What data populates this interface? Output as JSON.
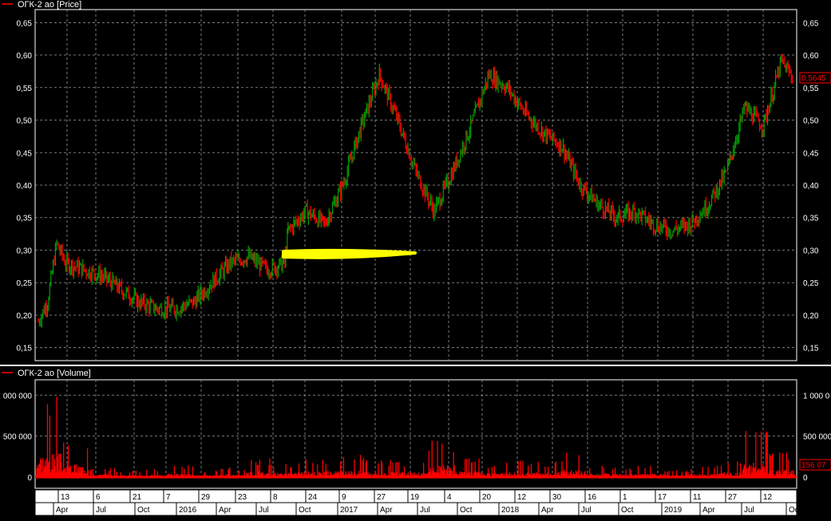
{
  "price_panel": {
    "legend": "ОГК-2 ао [Price]",
    "last_value": "0,5645",
    "y_ticks": [
      "0,65",
      "0,60",
      "0,55",
      "0,50",
      "0,45",
      "0,40",
      "0,35",
      "0,30",
      "0,25",
      "0,20",
      "0,15"
    ]
  },
  "volume_panel": {
    "legend": "ОГК-2 ао [Volume]",
    "last_value": "156 07",
    "y_ticks_left": [
      "000 000",
      "500 000",
      "0"
    ],
    "y_ticks_right": [
      "1 000 0",
      "500 000",
      "0"
    ]
  },
  "time_axis": {
    "row1": [
      "13",
      "6",
      "21",
      "7",
      "29",
      "23",
      "8",
      "24",
      "9",
      "27",
      "19",
      "4",
      "20",
      "12",
      "30",
      "16",
      "1",
      "17",
      "11",
      "27",
      "12"
    ],
    "row2": [
      "Apr",
      "Jul",
      "Oct",
      "2016",
      "Apr",
      "Jul",
      "Oct",
      "2017",
      "Apr",
      "Jul",
      "Oct",
      "2018",
      "Apr",
      "Jul",
      "Oct",
      "2019",
      "Apr",
      "Jul",
      "Oct"
    ]
  },
  "colors": {
    "up": "#00a000",
    "down": "#ff0000",
    "grid": "#aaaaaa",
    "highlight": "#ffff00"
  },
  "chart_data": [
    {
      "type": "line",
      "series": [
        {
          "name": "ОГК-2 ао [Price]",
          "x": [
            "2015-01-05",
            "2015-01-26",
            "2015-02-16",
            "2015-03-09",
            "2015-04-20",
            "2015-06-01",
            "2015-07-13",
            "2015-08-24",
            "2015-10-05",
            "2015-11-16",
            "2015-12-28",
            "2016-02-08",
            "2016-03-21",
            "2016-05-02",
            "2016-06-13",
            "2016-07-25",
            "2016-08-01",
            "2016-09-12",
            "2016-10-24",
            "2016-12-05",
            "2017-01-16",
            "2017-02-27",
            "2017-04-10",
            "2017-05-22",
            "2017-07-03",
            "2017-08-14",
            "2017-09-25",
            "2017-11-06",
            "2017-12-18",
            "2018-01-29",
            "2018-03-12",
            "2018-04-23",
            "2018-06-04",
            "2018-07-16",
            "2018-08-27",
            "2018-10-08",
            "2018-11-19",
            "2018-12-31",
            "2019-02-11",
            "2019-03-25",
            "2019-05-06",
            "2019-06-17",
            "2019-07-29",
            "2019-09-09",
            "2019-10-07"
          ],
          "values": [
            0.19,
            0.22,
            0.31,
            0.28,
            0.27,
            0.26,
            0.24,
            0.22,
            0.21,
            0.21,
            0.22,
            0.25,
            0.28,
            0.29,
            0.27,
            0.28,
            0.33,
            0.36,
            0.34,
            0.4,
            0.49,
            0.57,
            0.5,
            0.42,
            0.36,
            0.42,
            0.49,
            0.57,
            0.55,
            0.51,
            0.48,
            0.46,
            0.4,
            0.37,
            0.35,
            0.36,
            0.34,
            0.33,
            0.34,
            0.37,
            0.42,
            0.52,
            0.49,
            0.59,
            0.5645
          ]
        }
      ],
      "ylim": [
        0.13,
        0.67
      ]
    },
    {
      "type": "bar",
      "series": [
        {
          "name": "ОГК-2 ао [Volume]",
          "x": [
            "2015-01",
            "2015-03",
            "2015-05",
            "2015-07",
            "2015-09",
            "2015-11",
            "2016-01",
            "2016-03",
            "2016-05",
            "2016-07",
            "2016-09",
            "2016-11",
            "2017-01",
            "2017-03",
            "2017-05",
            "2017-07",
            "2017-09",
            "2017-11",
            "2018-01",
            "2018-03",
            "2018-05",
            "2018-07",
            "2018-09",
            "2018-11",
            "2019-01",
            "2019-03",
            "2019-05",
            "2019-07",
            "2019-09"
          ],
          "values": [
            1000000,
            550000,
            120000,
            90000,
            100000,
            150000,
            80000,
            120000,
            230000,
            180000,
            240000,
            250000,
            280000,
            220000,
            200000,
            500000,
            240000,
            180000,
            200000,
            200000,
            300000,
            160000,
            120000,
            140000,
            90000,
            130000,
            200000,
            600000,
            300000
          ]
        }
      ],
      "ylim": [
        0,
        1100000
      ]
    }
  ]
}
